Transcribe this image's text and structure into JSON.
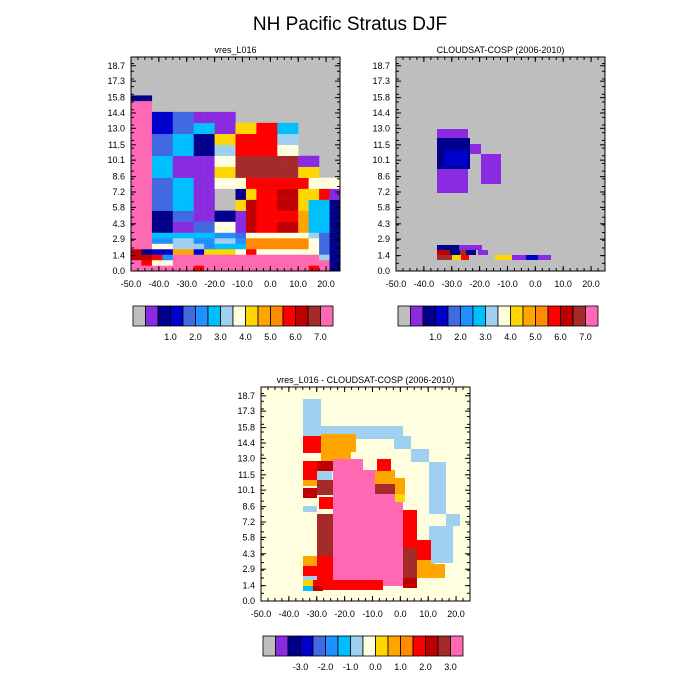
{
  "figure_title": "NH Pacific Stratus DJF",
  "colors": {
    "missing": "#bebebe",
    "abs_scale": [
      "#bebebe",
      "#8a2be2",
      "#00008b",
      "#0000cd",
      "#4169e1",
      "#1e90ff",
      "#00bfff",
      "#a0d0f0",
      "#ffffe0",
      "#ffd700",
      "#ffa500",
      "#ff8c00",
      "#ff0000",
      "#c00000",
      "#a52a2a",
      "#ff69b4"
    ],
    "diff_scale": [
      "#bebebe",
      "#8a2be2",
      "#00008b",
      "#0000cd",
      "#4169e1",
      "#1e90ff",
      "#00bfff",
      "#a0d0f0",
      "#ffffe0",
      "#ffd700",
      "#ffa500",
      "#ff8c00",
      "#ff0000",
      "#c00000",
      "#a52a2a",
      "#ff69b4"
    ]
  },
  "chart_data": [
    {
      "type": "heatmap",
      "title": "vres_L016",
      "x_ticks": [
        "-50.0",
        "-40.0",
        "-30.0",
        "-20.0",
        "-10.0",
        "0.0",
        "10.0",
        "20.0"
      ],
      "y_ticks": [
        "0.0",
        "1.4",
        "2.9",
        "4.3",
        "5.8",
        "7.2",
        "8.6",
        "10.1",
        "11.5",
        "13.0",
        "14.4",
        "15.8",
        "17.3",
        "18.7"
      ],
      "xlim": [
        -50,
        25
      ],
      "ylim": [
        0,
        19.5
      ],
      "colorbar_labels": [
        "1.0",
        "2.0",
        "3.0",
        "4.0",
        "5.0",
        "6.0",
        "7.0"
      ],
      "rows": [
        {
          "y": [
            0,
            0.5
          ],
          "x0": -50,
          "cells": [
            15,
            15,
            15,
            15,
            15,
            15,
            12,
            15,
            15,
            15,
            15,
            15,
            15,
            15,
            15,
            15,
            15,
            12,
            15,
            2
          ]
        },
        {
          "y": [
            0.5,
            1.0
          ],
          "x0": -50,
          "cells": [
            15,
            12,
            8,
            8,
            15,
            15,
            15,
            15,
            15,
            15,
            15,
            15,
            15,
            15,
            15,
            15,
            15,
            15,
            15,
            2
          ]
        },
        {
          "y": [
            1.0,
            1.5
          ],
          "x0": -50,
          "cells": [
            13,
            13,
            12,
            5,
            15,
            15,
            15,
            15,
            15,
            15,
            15,
            15,
            15,
            15,
            15,
            15,
            15,
            15,
            7,
            2
          ]
        },
        {
          "y": [
            1.5,
            2.0
          ],
          "x0": -50,
          "cells": [
            13,
            2,
            3,
            3,
            10,
            10,
            3,
            9,
            9,
            9,
            8,
            12,
            8,
            8,
            8,
            8,
            8,
            8,
            4,
            2
          ]
        },
        {
          "y": [
            2.0,
            2.5
          ],
          "x0": -50,
          "cells": [
            15,
            15,
            8,
            8,
            7,
            7,
            7,
            5,
            6,
            6,
            6,
            11,
            11,
            11,
            11,
            11,
            11,
            8,
            4,
            2
          ]
        },
        {
          "y": [
            2.5,
            3.0
          ],
          "x0": -50,
          "cells": [
            15,
            15,
            5,
            5,
            7,
            7,
            5,
            5,
            7,
            7,
            5,
            11,
            11,
            11,
            11,
            11,
            11,
            8,
            4,
            2
          ]
        },
        {
          "y": [
            3.0,
            3.5
          ],
          "x0": -50,
          "cells": [
            15,
            15,
            6,
            6,
            6,
            6,
            6,
            6,
            5,
            5,
            4,
            8,
            8,
            8,
            8,
            8,
            8,
            7,
            4,
            2
          ]
        },
        {
          "y": [
            3.5,
            4.5
          ],
          "x0": -50,
          "cells": [
            15,
            15,
            2,
            2,
            1,
            1,
            4,
            4,
            8,
            8,
            1,
            13,
            12,
            12,
            13,
            13,
            10,
            6,
            6,
            2
          ]
        },
        {
          "y": [
            4.5,
            5.5
          ],
          "x0": -50,
          "cells": [
            15,
            15,
            2,
            2,
            4,
            4,
            1,
            1,
            2,
            2,
            1,
            13,
            12,
            12,
            12,
            12,
            10,
            6,
            6,
            2
          ]
        },
        {
          "y": [
            5.5,
            6.5
          ],
          "x0": -50,
          "cells": [
            15,
            15,
            4,
            4,
            6,
            6,
            1,
            1,
            0,
            0,
            9,
            13,
            12,
            12,
            13,
            13,
            9,
            6,
            6,
            2
          ]
        },
        {
          "y": [
            6.5,
            7.5
          ],
          "x0": -50,
          "cells": [
            15,
            15,
            4,
            4,
            6,
            6,
            1,
            1,
            0,
            0,
            2,
            9,
            12,
            12,
            13,
            13,
            9,
            9,
            12,
            1
          ]
        },
        {
          "y": [
            7.5,
            8.5
          ],
          "x0": -50,
          "cells": [
            15,
            15,
            4,
            4,
            6,
            6,
            1,
            1,
            8,
            8,
            8,
            12,
            12,
            12,
            12,
            12,
            12,
            8,
            8,
            8
          ]
        },
        {
          "y": [
            8.5,
            9.5
          ],
          "x0": -50,
          "cells": [
            15,
            15,
            6,
            6,
            1,
            1,
            1,
            1,
            9,
            9,
            14,
            14,
            14,
            14,
            14,
            14,
            9,
            9,
            0,
            0
          ]
        },
        {
          "y": [
            9.5,
            10.5
          ],
          "x0": -50,
          "cells": [
            15,
            15,
            6,
            6,
            1,
            1,
            1,
            1,
            8,
            8,
            14,
            14,
            14,
            14,
            14,
            14,
            1,
            1,
            0,
            0
          ]
        },
        {
          "y": [
            10.5,
            11.5
          ],
          "x0": -50,
          "cells": [
            15,
            15,
            4,
            4,
            6,
            6,
            2,
            2,
            7,
            7,
            12,
            12,
            12,
            12,
            8,
            8,
            0,
            0,
            0,
            0
          ]
        },
        {
          "y": [
            11.5,
            12.5
          ],
          "x0": -50,
          "cells": [
            15,
            15,
            4,
            4,
            6,
            6,
            2,
            2,
            9,
            9,
            12,
            12,
            12,
            12,
            7,
            7,
            0,
            0,
            0,
            0
          ]
        },
        {
          "y": [
            12.5,
            13.5
          ],
          "x0": -50,
          "cells": [
            15,
            15,
            3,
            3,
            4,
            4,
            6,
            6,
            1,
            1,
            9,
            9,
            12,
            12,
            6,
            6,
            0,
            0,
            0,
            0
          ]
        },
        {
          "y": [
            13.5,
            14.5
          ],
          "x0": -50,
          "cells": [
            15,
            15,
            3,
            3,
            4,
            4,
            1,
            1,
            1,
            1,
            0,
            0,
            0,
            0,
            0,
            0,
            0,
            0,
            0,
            0
          ]
        },
        {
          "y": [
            14.5,
            15.5
          ],
          "x0": -50,
          "cells": [
            15,
            15,
            0,
            0,
            0,
            0,
            0,
            0,
            0,
            0,
            0,
            0,
            0,
            0,
            0,
            0,
            0,
            0,
            0,
            0
          ]
        },
        {
          "y": [
            15.5,
            16.0
          ],
          "x0": -50,
          "cells": [
            2,
            2,
            0,
            0,
            0,
            0,
            0,
            0,
            0,
            0,
            0,
            0,
            0,
            0,
            0,
            0,
            0,
            0,
            0,
            0
          ]
        },
        {
          "y": [
            16.0,
            19.5
          ],
          "x0": -50,
          "cells": [
            0,
            0,
            0,
            0,
            0,
            0,
            0,
            0,
            0,
            0,
            0,
            0,
            0,
            0,
            0,
            0,
            0,
            0,
            0,
            0
          ]
        }
      ]
    },
    {
      "type": "heatmap",
      "title": "CLOUDSAT-COSP (2006-2010)",
      "x_ticks": [
        "-50.0",
        "-40.0",
        "-30.0",
        "-20.0",
        "-10.0",
        "0.0",
        "10.0",
        "20.0"
      ],
      "y_ticks": [
        "0.0",
        "1.4",
        "2.9",
        "4.3",
        "5.8",
        "7.2",
        "8.6",
        "10.1",
        "11.5",
        "13.0",
        "14.4",
        "15.8",
        "17.3",
        "18.7"
      ],
      "xlim": [
        -50,
        25
      ],
      "ylim": [
        0,
        19.5
      ],
      "colorbar_labels": [
        "1.0",
        "2.0",
        "3.0",
        "4.0",
        "5.0",
        "6.0",
        "7.0"
      ],
      "rows": []
    },
    {
      "type": "heatmap",
      "title": "vres_L016 - CLOUDSAT-COSP (2006-2010)",
      "x_ticks": [
        "-50.0",
        "-40.0",
        "-30.0",
        "-20.0",
        "-10.0",
        "0.0",
        "10.0",
        "20.0"
      ],
      "y_ticks": [
        "0.0",
        "1.4",
        "2.9",
        "4.3",
        "5.8",
        "7.2",
        "8.6",
        "10.1",
        "11.5",
        "13.0",
        "14.4",
        "15.8",
        "17.3",
        "18.7"
      ],
      "xlim": [
        -50,
        25
      ],
      "ylim": [
        0,
        19.5
      ],
      "colorbar_labels": [
        "-3.0",
        "-2.0",
        "-1.0",
        "0.0",
        "1.0",
        "2.0",
        "3.0"
      ],
      "rows": []
    }
  ]
}
